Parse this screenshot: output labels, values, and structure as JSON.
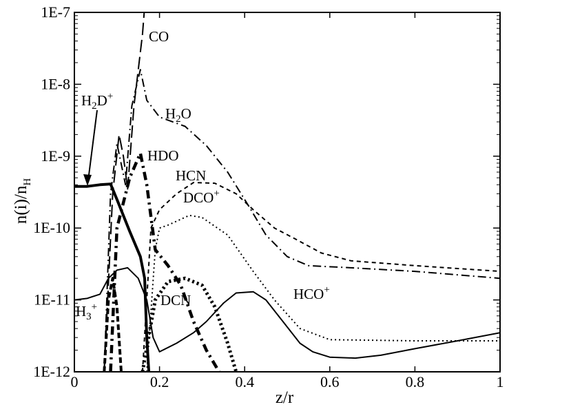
{
  "chart_data": {
    "type": "line",
    "title": "",
    "xlabel": "z/r",
    "ylabel": "n(i)/n_H",
    "xlim": [
      0,
      1
    ],
    "ylim": [
      1e-12,
      1e-07
    ],
    "yscale": "log",
    "x_ticks": [
      "0",
      "0.2",
      "0.4",
      "0.6",
      "0.8",
      "1"
    ],
    "y_ticks": [
      "1E-12",
      "1E-11",
      "1E-10",
      "1E-9",
      "1E-8",
      "1E-7"
    ],
    "series": [
      {
        "name": "CO",
        "style": "long-dash",
        "points": [
          [
            0.07,
            1e-12
          ],
          [
            0.09,
            3e-10
          ],
          [
            0.105,
            2e-09
          ],
          [
            0.115,
            1e-09
          ],
          [
            0.125,
            3.5e-10
          ],
          [
            0.14,
            5e-09
          ],
          [
            0.16,
            5e-08
          ],
          [
            0.165,
            1.2e-07
          ]
        ]
      },
      {
        "name": "H2O",
        "style": "dash-dot",
        "points": [
          [
            0.07,
            1e-12
          ],
          [
            0.085,
            3e-10
          ],
          [
            0.1,
            1.5e-09
          ],
          [
            0.12,
            4e-10
          ],
          [
            0.135,
            5e-09
          ],
          [
            0.155,
            1.6e-08
          ],
          [
            0.17,
            6e-09
          ],
          [
            0.2,
            3.5e-09
          ],
          [
            0.26,
            2.6e-09
          ],
          [
            0.31,
            1.4e-09
          ],
          [
            0.36,
            6e-10
          ],
          [
            0.41,
            2e-10
          ],
          [
            0.45,
            8e-11
          ],
          [
            0.5,
            4e-11
          ],
          [
            0.55,
            3e-11
          ],
          [
            0.65,
            2.8e-11
          ],
          [
            0.8,
            2.5e-11
          ],
          [
            1.0,
            2e-11
          ]
        ]
      },
      {
        "name": "HDO",
        "style": "thick-dash-dot",
        "points": [
          [
            0.085,
            1e-12
          ],
          [
            0.1,
            1e-10
          ],
          [
            0.13,
            5e-10
          ],
          [
            0.155,
            1.1e-09
          ],
          [
            0.17,
            4e-10
          ],
          [
            0.19,
            5e-11
          ],
          [
            0.22,
            3e-11
          ],
          [
            0.25,
            1.6e-11
          ],
          [
            0.28,
            5e-12
          ],
          [
            0.31,
            2e-12
          ],
          [
            0.34,
            1e-12
          ]
        ]
      },
      {
        "name": "HCN",
        "style": "short-dash",
        "points": [
          [
            0.16,
            1e-12
          ],
          [
            0.18,
            1e-10
          ],
          [
            0.2,
            1.8e-10
          ],
          [
            0.24,
            3e-10
          ],
          [
            0.28,
            4.3e-10
          ],
          [
            0.33,
            4.2e-10
          ],
          [
            0.38,
            3e-10
          ],
          [
            0.42,
            1.8e-10
          ],
          [
            0.47,
            1e-10
          ],
          [
            0.52,
            7e-11
          ],
          [
            0.58,
            4.5e-11
          ],
          [
            0.65,
            3.5e-11
          ],
          [
            0.8,
            3e-11
          ],
          [
            1.0,
            2.5e-11
          ]
        ]
      },
      {
        "name": "DCO+",
        "style": "dotted",
        "points": [
          [
            0.17,
            1e-12
          ],
          [
            0.19,
            5e-11
          ],
          [
            0.2,
            1e-10
          ],
          [
            0.22,
            1.1e-10
          ],
          [
            0.27,
            1.5e-10
          ],
          [
            0.3,
            1.4e-10
          ],
          [
            0.36,
            8e-11
          ],
          [
            0.42,
            2.5e-11
          ],
          [
            0.47,
            1e-11
          ],
          [
            0.53,
            4e-12
          ],
          [
            0.6,
            2.8e-12
          ],
          [
            0.8,
            2.7e-12
          ],
          [
            1.0,
            2.7e-12
          ]
        ]
      },
      {
        "name": "DCN",
        "style": "thick-dotted",
        "points": [
          [
            0.16,
            1e-12
          ],
          [
            0.19,
            1e-11
          ],
          [
            0.22,
            1.8e-11
          ],
          [
            0.26,
            2e-11
          ],
          [
            0.3,
            1.6e-11
          ],
          [
            0.33,
            8e-12
          ],
          [
            0.36,
            2.5e-12
          ],
          [
            0.38,
            1e-12
          ]
        ]
      },
      {
        "name": "HCO+",
        "style": "solid",
        "points": [
          [
            0.0,
            1e-11
          ],
          [
            0.03,
            1.05e-11
          ],
          [
            0.06,
            1.2e-11
          ],
          [
            0.08,
            2e-11
          ],
          [
            0.1,
            2.6e-11
          ],
          [
            0.125,
            2.8e-11
          ],
          [
            0.15,
            2e-11
          ],
          [
            0.17,
            1e-11
          ],
          [
            0.185,
            3e-12
          ],
          [
            0.2,
            1.9e-12
          ],
          [
            0.24,
            2.5e-12
          ],
          [
            0.28,
            3.5e-12
          ],
          [
            0.31,
            5e-12
          ],
          [
            0.35,
            9e-12
          ],
          [
            0.38,
            1.25e-11
          ],
          [
            0.42,
            1.3e-11
          ],
          [
            0.45,
            1e-11
          ],
          [
            0.49,
            5e-12
          ],
          [
            0.53,
            2.5e-12
          ],
          [
            0.56,
            1.9e-12
          ],
          [
            0.6,
            1.6e-12
          ],
          [
            0.66,
            1.55e-12
          ],
          [
            0.72,
            1.7e-12
          ],
          [
            0.8,
            2.1e-12
          ],
          [
            0.9,
            2.7e-12
          ],
          [
            1.0,
            3.5e-12
          ]
        ]
      },
      {
        "name": "H3+",
        "style": "thick-dash",
        "points": [
          [
            0.07,
            1e-12
          ],
          [
            0.08,
            1e-11
          ],
          [
            0.09,
            2e-11
          ],
          [
            0.1,
            8e-12
          ],
          [
            0.11,
            1e-12
          ]
        ]
      },
      {
        "name": "H2D+",
        "style": "thick-solid",
        "points": [
          [
            0.0,
            3.8e-10
          ],
          [
            0.03,
            3.8e-10
          ],
          [
            0.06,
            4e-10
          ],
          [
            0.085,
            4.1e-10
          ],
          [
            0.1,
            2.5e-10
          ],
          [
            0.13,
            9e-11
          ],
          [
            0.155,
            4e-11
          ],
          [
            0.165,
            2e-11
          ],
          [
            0.17,
            3e-12
          ],
          [
            0.175,
            1e-12
          ]
        ]
      }
    ]
  },
  "labels": {
    "co": "CO",
    "h2o_a": "H",
    "h2o_b": "2",
    "h2o_c": "O",
    "h2dp_a": "H",
    "h2dp_b": "2",
    "h2dp_c": "D",
    "h2dp_d": "+",
    "hdo": "HDO",
    "hcn": "HCN",
    "dcop_a": "DCO",
    "dcop_b": "+",
    "dcn": "DCN",
    "hcop_a": "HCO",
    "hcop_b": "+",
    "h3p_a": "H",
    "h3p_b": "3",
    "h3p_c": "+",
    "ylabel_a": "n(i)/n",
    "ylabel_b": "H",
    "xlabel": "z/r"
  }
}
